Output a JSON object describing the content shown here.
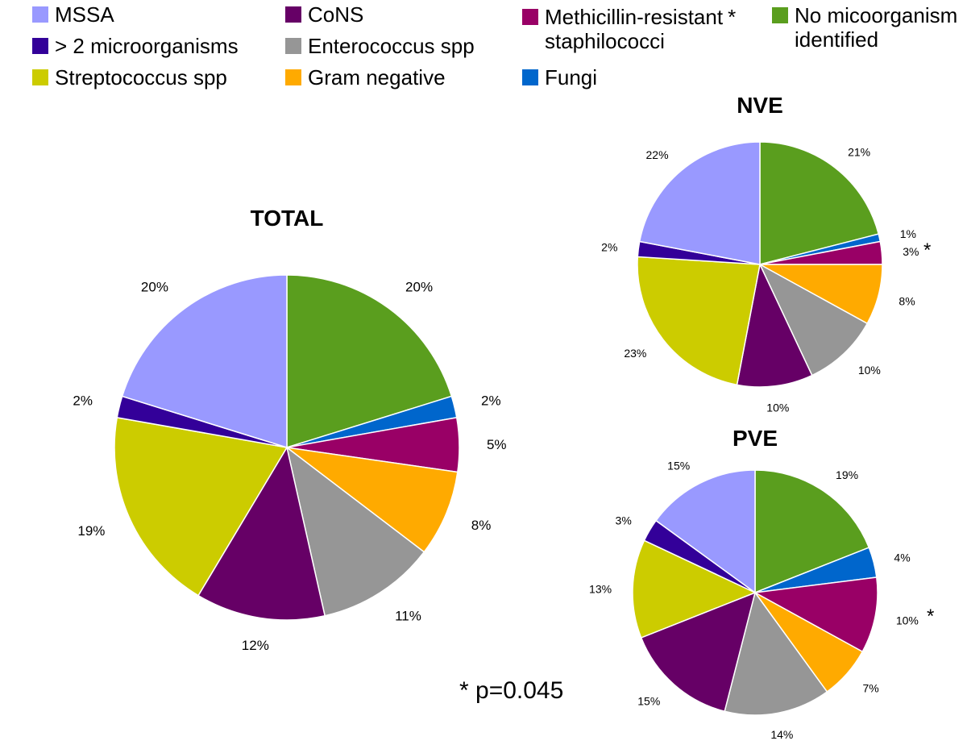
{
  "legend": [
    {
      "key": "mssa",
      "label": "MSSA",
      "color": "#9999ff",
      "marker": ""
    },
    {
      "key": "cons",
      "label": "CoNS",
      "color": "#660066",
      "marker": ""
    },
    {
      "key": "mrs",
      "label": "Methicillin-resistant\nstaphilococci",
      "color": "#990066",
      "marker": "*"
    },
    {
      "key": "none",
      "label": "No micoorganism\nidentified",
      "color": "#5a9e1e",
      "marker": ""
    },
    {
      "key": "multi",
      "label": "> 2 microorganisms",
      "color": "#330099",
      "marker": ""
    },
    {
      "key": "entero",
      "label": "Enterococcus spp",
      "color": "#969696",
      "marker": ""
    },
    {
      "key": "strep",
      "label": "Streptococcus spp",
      "color": "#cccc00",
      "marker": ""
    },
    {
      "key": "gramneg",
      "label": "Gram negative",
      "color": "#ffaa00",
      "marker": ""
    },
    {
      "key": "fungi",
      "label": "Fungi",
      "color": "#0066cc",
      "marker": ""
    }
  ],
  "footnote": "* p=0.045",
  "chart_data": [
    {
      "type": "pie",
      "title": "TOTAL",
      "categories": [
        "No micoorganism identified",
        "Fungi",
        "Methicillin-resistant staphilococci",
        "Gram negative",
        "Enterococcus spp",
        "CoNS",
        "Streptococcus spp",
        "> 2 microorganisms",
        "MSSA"
      ],
      "values": [
        20,
        2,
        5,
        8,
        11,
        12,
        19,
        2,
        20
      ],
      "labels": [
        "20%",
        "2%",
        "5%",
        "8%",
        "11%",
        "12%",
        "19%",
        "2%",
        "20%"
      ],
      "colors": [
        "#5a9e1e",
        "#0066cc",
        "#990066",
        "#ffaa00",
        "#969696",
        "#660066",
        "#cccc00",
        "#330099",
        "#9999ff"
      ],
      "asterisk": ""
    },
    {
      "type": "pie",
      "title": "NVE",
      "categories": [
        "No micoorganism identified",
        "Fungi",
        "Methicillin-resistant staphilococci",
        "Gram negative",
        "Enterococcus spp",
        "CoNS",
        "Streptococcus spp",
        "> 2 microorganisms",
        "MSSA"
      ],
      "values": [
        21,
        1,
        3,
        8,
        10,
        10,
        23,
        2,
        22
      ],
      "labels": [
        "21%",
        "1%",
        "3%",
        "8%",
        "10%",
        "10%",
        "23%",
        "2%",
        "22%"
      ],
      "colors": [
        "#5a9e1e",
        "#0066cc",
        "#990066",
        "#ffaa00",
        "#969696",
        "#660066",
        "#cccc00",
        "#330099",
        "#9999ff"
      ],
      "asterisk": "*"
    },
    {
      "type": "pie",
      "title": "PVE",
      "categories": [
        "No micoorganism identified",
        "Fungi",
        "Methicillin-resistant staphilococci",
        "Gram negative",
        "Enterococcus spp",
        "CoNS",
        "Streptococcus spp",
        "> 2 microorganisms",
        "MSSA"
      ],
      "values": [
        19,
        4,
        10,
        7,
        14,
        15,
        13,
        3,
        15
      ],
      "labels": [
        "19%",
        "4%",
        "10%",
        "7%",
        "14%",
        "15%",
        "13%",
        "3%",
        "15%"
      ],
      "colors": [
        "#5a9e1e",
        "#0066cc",
        "#990066",
        "#ffaa00",
        "#969696",
        "#660066",
        "#cccc00",
        "#330099",
        "#9999ff"
      ],
      "asterisk": "*"
    }
  ]
}
